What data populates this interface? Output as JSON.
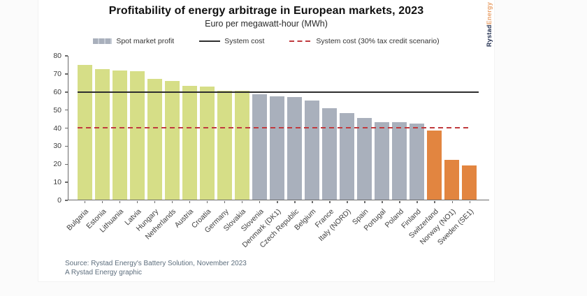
{
  "chart": {
    "title": "Profitability of energy arbitrage in European markets, 2023",
    "subtitle": "Euro per megawatt-hour (MWh)"
  },
  "legend": {
    "spot": "Spot market profit",
    "system_cost": "System cost",
    "tax_credit": "System cost (30% tax credit scenario)"
  },
  "source": {
    "line1": "Source: Rystad Energy's Battery Solution, November 2023",
    "line2": "A Rystad Energy graphic"
  },
  "logo": {
    "part1": "Rystad",
    "part2": "Energy"
  },
  "colors": {
    "green": "#d6de87",
    "gray": "#a9b0bc",
    "orange": "#e28540",
    "system_cost_line": "#2e2e2e",
    "tax_credit_line": "#c03a3e"
  },
  "chart_data": {
    "type": "bar",
    "title": "Profitability of energy arbitrage in European markets, 2023",
    "subtitle": "Euro per megawatt-hour (MWh)",
    "ylabel": "Euro per megawatt-hour (MWh)",
    "ylim": [
      0,
      80
    ],
    "yticks": [
      0,
      10,
      20,
      30,
      40,
      50,
      60,
      70,
      80
    ],
    "grid": false,
    "legend_position": "top",
    "categories": [
      "Bulgaria",
      "Estonia",
      "Lithuania",
      "Latvia",
      "Hungary",
      "Netherlands",
      "Austria",
      "Croatia",
      "Germany",
      "Slovakia",
      "Slovenia",
      "Denmark (DK1)",
      "Czech Republic",
      "Belgium",
      "France",
      "Italy (NORD)",
      "Spain",
      "Portugal",
      "Poland",
      "Finland",
      "Switzerland",
      "Norway (NO1)",
      "Sweden (SE1)"
    ],
    "values": [
      75,
      72.5,
      72,
      71.5,
      67,
      66,
      63.5,
      63,
      60.5,
      60.5,
      58.5,
      57.5,
      57,
      55,
      51,
      48,
      45.5,
      43,
      43,
      42.5,
      38.5,
      22,
      19
    ],
    "groups": [
      "green",
      "green",
      "green",
      "green",
      "green",
      "green",
      "green",
      "green",
      "green",
      "green",
      "gray",
      "gray",
      "gray",
      "gray",
      "gray",
      "gray",
      "gray",
      "gray",
      "gray",
      "gray",
      "orange",
      "orange",
      "orange"
    ],
    "series_name": "Spot market profit",
    "reference_lines": [
      {
        "label": "System cost",
        "value": 60,
        "style": "solid",
        "color": "#2e2e2e"
      },
      {
        "label": "System cost (30% tax credit scenario)",
        "value": 40,
        "style": "dashed",
        "color": "#c03a3e"
      }
    ]
  }
}
